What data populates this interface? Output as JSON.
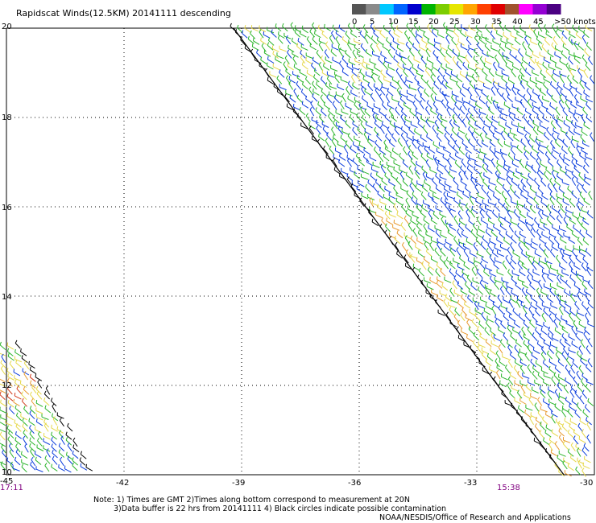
{
  "title": "Rapidscat Winds(12.5KM) 20141111 descending",
  "legend": {
    "labels": [
      "0",
      "5",
      "10",
      "15",
      "20",
      "25",
      "30",
      "35",
      "40",
      "45",
      ">50 knots"
    ],
    "colors": [
      "#555555",
      "#8a8a8a",
      "#00c8ff",
      "#0064ff",
      "#0000cd",
      "#00b400",
      "#7ccd00",
      "#e6e600",
      "#ffa500",
      "#ff4000",
      "#e00000",
      "#a0522d",
      "#ff00ff",
      "#9400d3",
      "#4b0082"
    ]
  },
  "map": {
    "lat_labels": [
      "20",
      "18",
      "16",
      "14",
      "12",
      "10"
    ],
    "lon_labels": [
      "-42",
      "-39",
      "-36",
      "-33",
      "-30"
    ],
    "lon_left_edge": "-45",
    "lon_range": [
      -45,
      -30
    ],
    "lat_range": [
      10,
      20
    ]
  },
  "times": {
    "left": "17:11",
    "right": "15:38"
  },
  "notes": [
    "Note: 1) Times are GMT 2)Times along bottom correspond to measurement at 20N",
    "3)Data buffer is 22 hrs from 20141111 4) Black circles indicate possible contamination",
    "NOAA/NESDIS/Office of Research and Applications"
  ],
  "colors": {
    "grid": "#000000",
    "swath_edge": "#000000",
    "blue": "#0a3cdc",
    "green": "#2ab42a",
    "yellow": "#e6d84a",
    "orange": "#e89a30",
    "red": "#d23c1e"
  }
}
